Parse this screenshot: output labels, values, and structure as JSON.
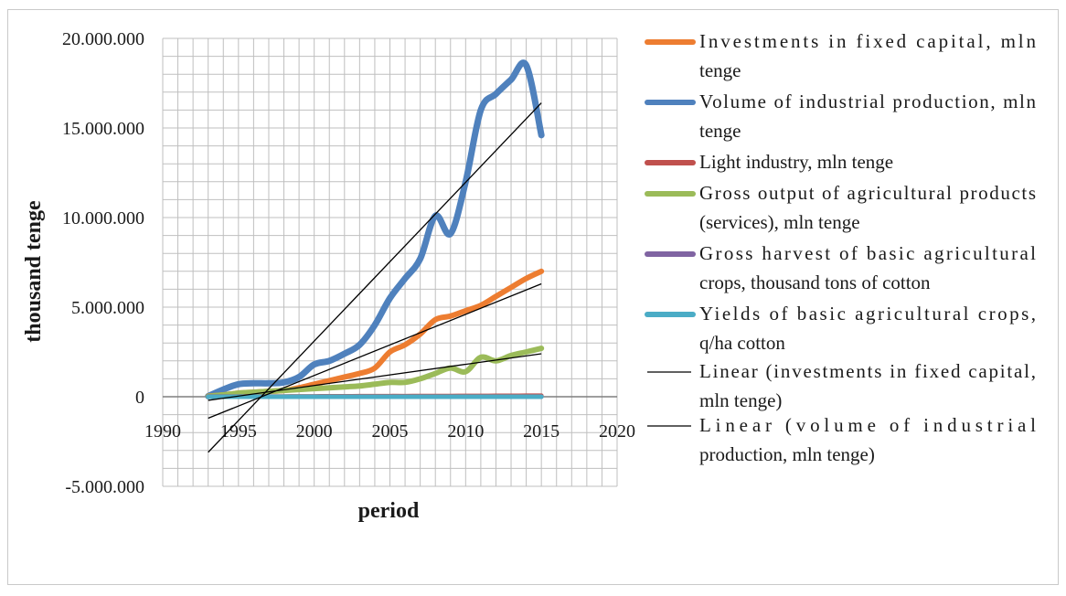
{
  "chart_data": {
    "type": "line",
    "title": "",
    "xlabel": "period",
    "ylabel": "thousand tenge",
    "xlim": [
      1990,
      2020
    ],
    "ylim": [
      -5000000,
      20000000
    ],
    "x_ticks": [
      1990,
      1995,
      2000,
      2005,
      2010,
      2015,
      2020
    ],
    "y_ticks": [
      {
        "value": -5000000,
        "label": "-5.000.000"
      },
      {
        "value": 0,
        "label": "0"
      },
      {
        "value": 5000000,
        "label": "5.000.000"
      },
      {
        "value": 10000000,
        "label": "10.000.000"
      },
      {
        "value": 15000000,
        "label": "15.000.000"
      },
      {
        "value": 20000000,
        "label": "20.000.000"
      }
    ],
    "grid": true,
    "legend_position": "right",
    "x": [
      1993,
      1994,
      1995,
      1996,
      1997,
      1998,
      1999,
      2000,
      2001,
      2002,
      2003,
      2004,
      2005,
      2006,
      2007,
      2008,
      2009,
      2010,
      2011,
      2012,
      2013,
      2014,
      2015
    ],
    "series": [
      {
        "name": "Investments in fixed capital, mln tenge",
        "color": "#ed7d31",
        "width": 6,
        "values": [
          30000,
          100000,
          200000,
          250000,
          300000,
          350000,
          500000,
          700000,
          900000,
          1100000,
          1300000,
          1600000,
          2500000,
          2900000,
          3500000,
          4300000,
          4500000,
          4800000,
          5100000,
          5600000,
          6100000,
          6600000,
          7000000
        ]
      },
      {
        "name": "Volume of industrial production, mln tenge",
        "color": "#4f81bd",
        "width": 7,
        "values": [
          30000,
          400000,
          700000,
          750000,
          750000,
          800000,
          1100000,
          1800000,
          2000000,
          2400000,
          2900000,
          4000000,
          5500000,
          6600000,
          7700000,
          10100000,
          9100000,
          12000000,
          16000000,
          16900000,
          17700000,
          18500000,
          14600000
        ]
      },
      {
        "name": "Light industry, mln tenge",
        "color": "#c0504d",
        "width": 5,
        "values": [
          10000,
          10000,
          10000,
          15000,
          15000,
          15000,
          20000,
          20000,
          25000,
          25000,
          30000,
          30000,
          35000,
          35000,
          40000,
          40000,
          40000,
          45000,
          45000,
          50000,
          50000,
          55000,
          55000
        ]
      },
      {
        "name": "Gross output of agricultural products (services), mln tenge",
        "color": "#9bbb59",
        "width": 6,
        "values": [
          20000,
          100000,
          200000,
          250000,
          300000,
          350000,
          400000,
          450000,
          500000,
          550000,
          600000,
          700000,
          800000,
          800000,
          1000000,
          1300000,
          1600000,
          1400000,
          2200000,
          2000000,
          2300000,
          2500000,
          2700000
        ]
      },
      {
        "name": "Gross harvest of basic agricultural crops, thousand tons of cotton",
        "color": "#8064a2",
        "width": 5,
        "values": [
          400,
          400,
          400,
          400,
          400,
          400,
          400,
          400,
          400,
          400,
          400,
          400,
          400,
          400,
          400,
          400,
          400,
          400,
          400,
          400,
          400,
          400,
          400
        ]
      },
      {
        "name": "Yields of basic agricultural crops, q/ha cotton",
        "color": "#4bacc6",
        "width": 5,
        "values": [
          30,
          30,
          30,
          30,
          30,
          30,
          30,
          30,
          30,
          30,
          30,
          30,
          30,
          30,
          30,
          30,
          30,
          30,
          30,
          30,
          30,
          30,
          30
        ]
      }
    ],
    "trendlines": [
      {
        "name": "Linear (investments in fixed capital, mln tenge)",
        "color": "#000000",
        "from": [
          1993,
          -1200000
        ],
        "to": [
          2015,
          6300000
        ]
      },
      {
        "name": "Linear (volume of industrial production, mln tenge)",
        "color": "#000000",
        "from": [
          1993,
          -3100000
        ],
        "to": [
          2015,
          16400000
        ]
      },
      {
        "name": "",
        "color": "#000000",
        "from": [
          1993,
          -200000
        ],
        "to": [
          2015,
          2400000
        ]
      }
    ],
    "legend": [
      {
        "marker": "thick",
        "color": "#ed7d31",
        "lines": [
          "Investments in fixed capital, mln",
          "tenge"
        ]
      },
      {
        "marker": "thick",
        "color": "#4f81bd",
        "lines": [
          "Volume of industrial production, mln",
          "tenge"
        ]
      },
      {
        "marker": "thick",
        "color": "#c0504d",
        "lines": [
          "Light industry, mln tenge"
        ]
      },
      {
        "marker": "thick",
        "color": "#9bbb59",
        "lines": [
          "Gross output of agricultural products",
          "(services), mln tenge"
        ]
      },
      {
        "marker": "thick",
        "color": "#8064a2",
        "lines": [
          "Gross harvest of basic agricultural",
          "crops, thousand tons of cotton"
        ]
      },
      {
        "marker": "thick",
        "color": "#4bacc6",
        "lines": [
          "Yields of basic agricultural crops,",
          "q/ha cotton"
        ]
      },
      {
        "marker": "thin",
        "color": "#000000",
        "lines": [
          "Linear (investments in fixed capital,",
          "mln tenge)"
        ]
      },
      {
        "marker": "thin",
        "color": "#000000",
        "lines": [
          "Linear (volume of industrial",
          "production, mln tenge)"
        ]
      }
    ]
  }
}
